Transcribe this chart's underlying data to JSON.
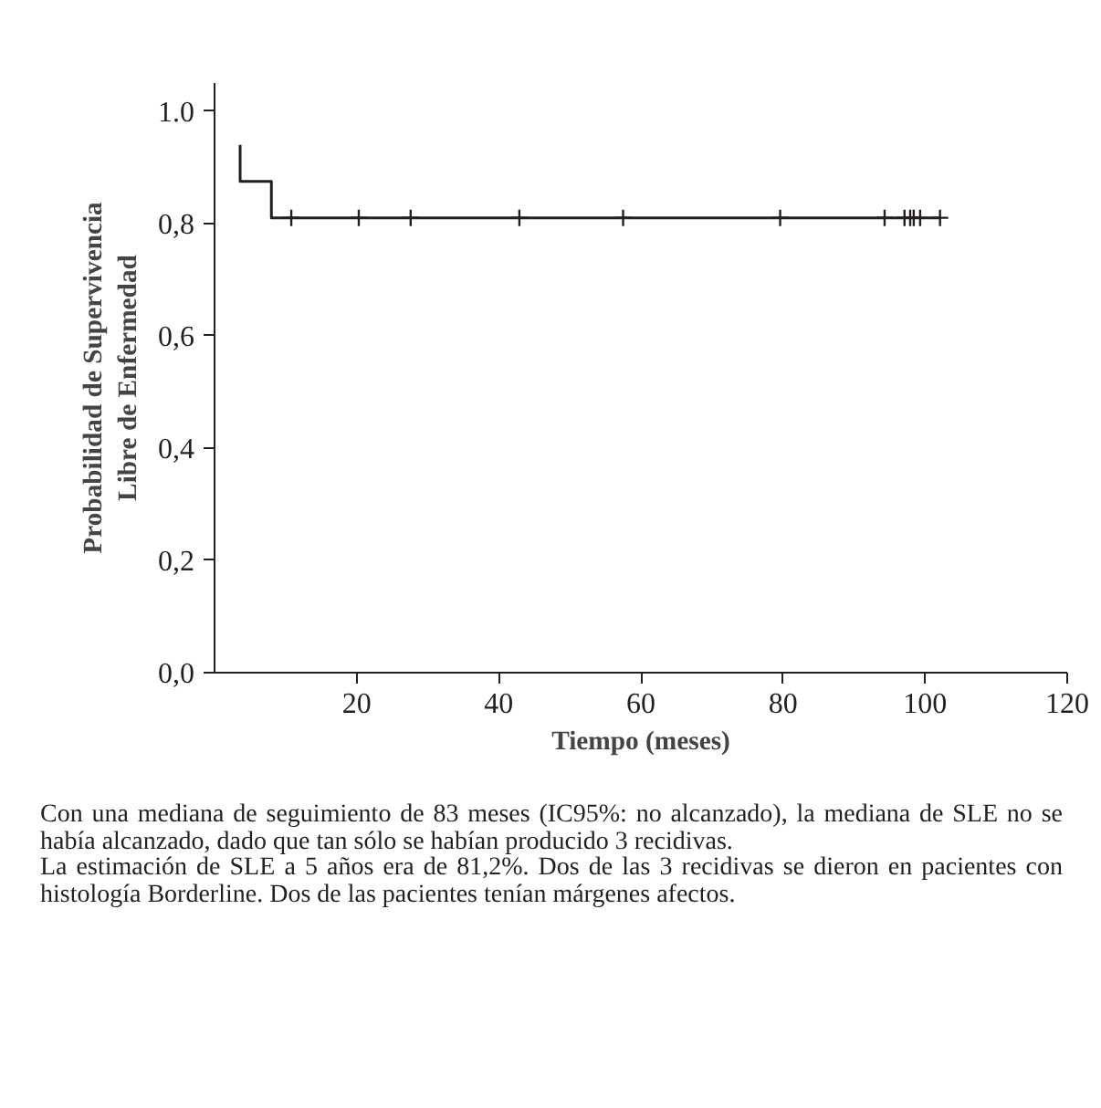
{
  "chart_data": {
    "type": "line",
    "xlabel": "Tiempo (meses)",
    "ylabel": "Probabilidad de Supervivencia\nLibre de Enfermedad",
    "xlim": [
      0,
      120
    ],
    "ylim": [
      0,
      1.05
    ],
    "xticks": [
      20,
      40,
      60,
      80,
      100,
      120
    ],
    "yticks": [
      {
        "value": 0,
        "label": "0,0"
      },
      {
        "value": 0.2,
        "label": "0,2"
      },
      {
        "value": 0.4,
        "label": "0,4"
      },
      {
        "value": 0.6,
        "label": "0,6"
      },
      {
        "value": 0.8,
        "label": "0,8"
      },
      {
        "value": 1.0,
        "label": "1.0"
      }
    ],
    "series": [
      {
        "color": "#231f20",
        "x": [
          3.6,
          3.6,
          8.0,
          8.0,
          102.1
        ],
        "values": [
          0.94,
          0.875,
          0.875,
          0.81,
          0.81
        ]
      },
      {
        "type": "scatter",
        "marker": "cross",
        "color": "#231f20",
        "x": [
          10.8,
          20.3,
          27.6,
          42.9,
          57.5,
          79.6,
          94.3,
          97.1,
          97.9,
          98.4,
          99.3,
          102.1
        ],
        "values": [
          0.81,
          0.81,
          0.81,
          0.81,
          0.81,
          0.81,
          0.81,
          0.81,
          0.81,
          0.81,
          0.81,
          0.81
        ]
      }
    ],
    "grid": false,
    "line_style": "solid",
    "annotations": [
      "Con una mediana de seguimiento de 83 meses (IC95%: no alcanzado), la mediana de SLE no se había alcanzado, dado que tan sólo se habían producido 3 recidivas.",
      "La estimación de SLE a 5 años era de 81,2%. Dos de las 3 recidivas se dieron en pacientes con histología Borderline. Dos de las pacientes tenían márgenes afectos."
    ]
  }
}
